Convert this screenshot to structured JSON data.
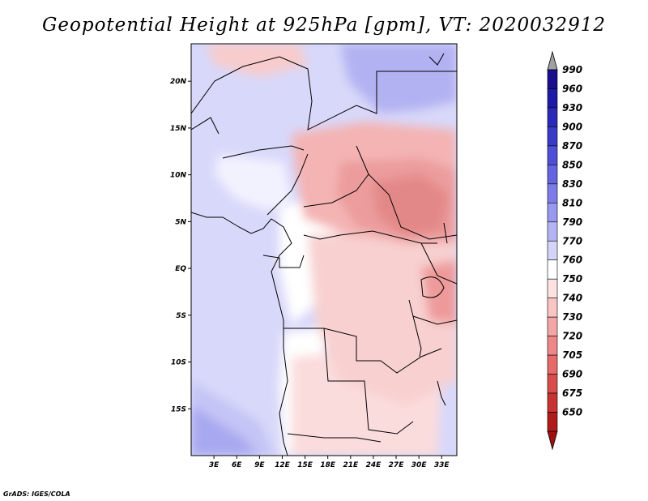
{
  "title": "Geopotential Height at 925hPa [gpm], VT: 2020032912",
  "credit": "GrADS: IGES/COLA",
  "map": {
    "lat_range": [
      -20,
      24
    ],
    "lon_range": [
      0,
      35
    ],
    "lat_ticks": [
      {
        "value": 20,
        "label": "20N"
      },
      {
        "value": 15,
        "label": "15N"
      },
      {
        "value": 10,
        "label": "10N"
      },
      {
        "value": 5,
        "label": "5N"
      },
      {
        "value": 0,
        "label": "EQ"
      },
      {
        "value": -5,
        "label": "5S"
      },
      {
        "value": -10,
        "label": "10S"
      },
      {
        "value": -15,
        "label": "15S"
      }
    ],
    "lon_ticks": [
      {
        "value": 3,
        "label": "3E"
      },
      {
        "value": 6,
        "label": "6E"
      },
      {
        "value": 9,
        "label": "9E"
      },
      {
        "value": 12,
        "label": "12E"
      },
      {
        "value": 15,
        "label": "15E"
      },
      {
        "value": 18,
        "label": "18E"
      },
      {
        "value": 21,
        "label": "21E"
      },
      {
        "value": 24,
        "label": "24E"
      },
      {
        "value": 27,
        "label": "27E"
      },
      {
        "value": 30,
        "label": "30E"
      },
      {
        "value": 33,
        "label": "33E"
      }
    ]
  },
  "colorbar": {
    "levels": [
      {
        "label": "990",
        "color": "#1a0e8c"
      },
      {
        "label": "960",
        "color": "#1e1aa6"
      },
      {
        "label": "930",
        "color": "#2a2ab8"
      },
      {
        "label": "900",
        "color": "#3a3ac8"
      },
      {
        "label": "870",
        "color": "#4e4ed6"
      },
      {
        "label": "850",
        "color": "#6464e0"
      },
      {
        "label": "830",
        "color": "#7c7ce8"
      },
      {
        "label": "810",
        "color": "#9898ee"
      },
      {
        "label": "790",
        "color": "#b4b4f4"
      },
      {
        "label": "770",
        "color": "#d4d4f8"
      },
      {
        "label": "760",
        "color": "#ffffff"
      },
      {
        "label": "750",
        "color": "#fde2e2"
      },
      {
        "label": "740",
        "color": "#f9c4c4"
      },
      {
        "label": "730",
        "color": "#f4a6a6"
      },
      {
        "label": "720",
        "color": "#ee8888"
      },
      {
        "label": "705",
        "color": "#e66a6a"
      },
      {
        "label": "690",
        "color": "#d84c4c"
      },
      {
        "label": "675",
        "color": "#c83232"
      },
      {
        "label": "650",
        "color": "#b01a1a"
      }
    ],
    "over_color": "#a0a0a0",
    "under_color": "#a01010"
  }
}
